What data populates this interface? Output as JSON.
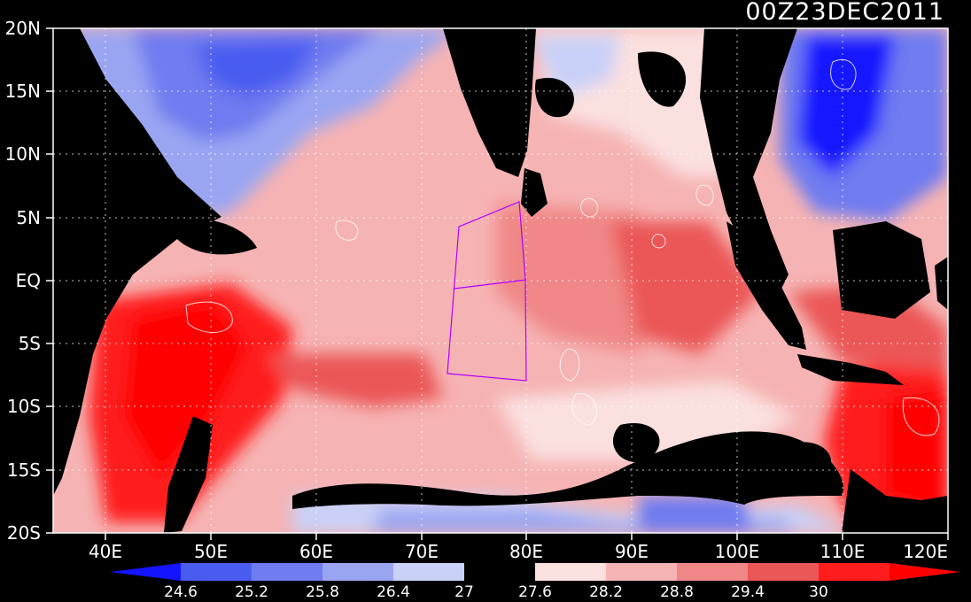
{
  "title": "00Z23DEC2011",
  "longitude_labels": [
    "40E",
    "50E",
    "60E",
    "70E",
    "80E",
    "90E",
    "100E",
    "110E",
    "120E"
  ],
  "latitude_labels": [
    "20N",
    "15N",
    "10N",
    "5N",
    "EQ",
    "5S",
    "10S",
    "15S",
    "20S"
  ],
  "colorbar": {
    "labels": [
      "24.6",
      "25.2",
      "25.8",
      "26.4",
      "27",
      "27.6",
      "28.2",
      "28.8",
      "29.4",
      "30"
    ],
    "colors": [
      "#1414ff",
      "#4a5cf0",
      "#6f7cf0",
      "#9aa5f2",
      "#c9d1f8",
      "#000000",
      "#fbe0e0",
      "#f6b3b3",
      "#f08787",
      "#eb5757",
      "#ff1c1c",
      "#ff0000"
    ]
  },
  "map": {
    "land_color": "#000000",
    "grid": "dotted",
    "box_color": "#b000ff"
  },
  "chart_data": {
    "type": "heatmap",
    "title": "00Z23DEC2011",
    "x_range": [
      35,
      120
    ],
    "y_range": [
      -20,
      20
    ],
    "x_ticks": [
      40,
      50,
      60,
      70,
      80,
      90,
      100,
      110,
      120
    ],
    "y_ticks": [
      20,
      15,
      10,
      5,
      0,
      -5,
      -10,
      -15,
      -20
    ],
    "contour_levels": [
      24.6,
      25.2,
      25.8,
      26.4,
      27,
      27.6,
      28.2,
      28.8,
      29.4,
      30
    ],
    "box_outline": [
      [
        73.5,
        4.3
      ],
      [
        80,
        6
      ],
      [
        80,
        -7.9
      ],
      [
        72.5,
        -7.4
      ],
      [
        73.5,
        4.3
      ]
    ],
    "box_divider": [
      [
        73,
        -0.6
      ],
      [
        80,
        0
      ]
    ]
  }
}
